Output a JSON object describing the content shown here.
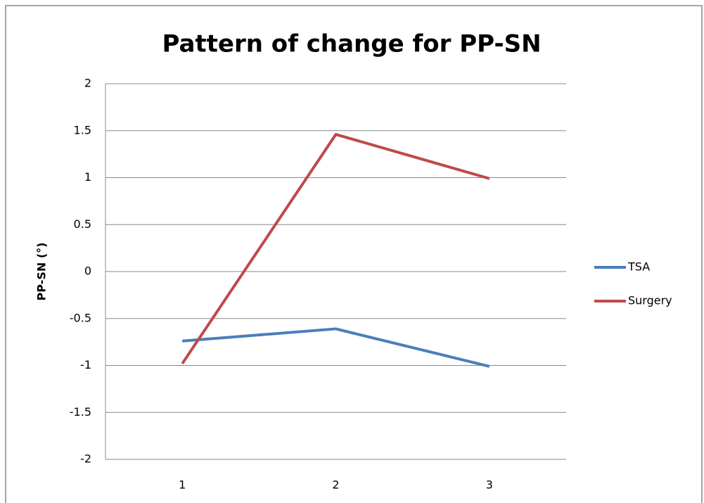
{
  "chart_data": {
    "type": "line",
    "title": "Pattern of change for PP-SN",
    "y_label": "PP-SN (°)",
    "categories": [
      "1",
      "2",
      "3"
    ],
    "series": [
      {
        "name": "TSA",
        "color": "#4a7ebb",
        "values": [
          -0.74,
          -0.61,
          -1.01
        ]
      },
      {
        "name": "Surgery",
        "color": "#be4b48",
        "values": [
          -0.98,
          1.46,
          0.99
        ]
      }
    ],
    "ylim": [
      -2,
      2
    ],
    "yticks": [
      -2,
      -1.5,
      -1,
      -0.5,
      0,
      0.5,
      1,
      1.5,
      2
    ],
    "grid": true,
    "legend": "right"
  }
}
